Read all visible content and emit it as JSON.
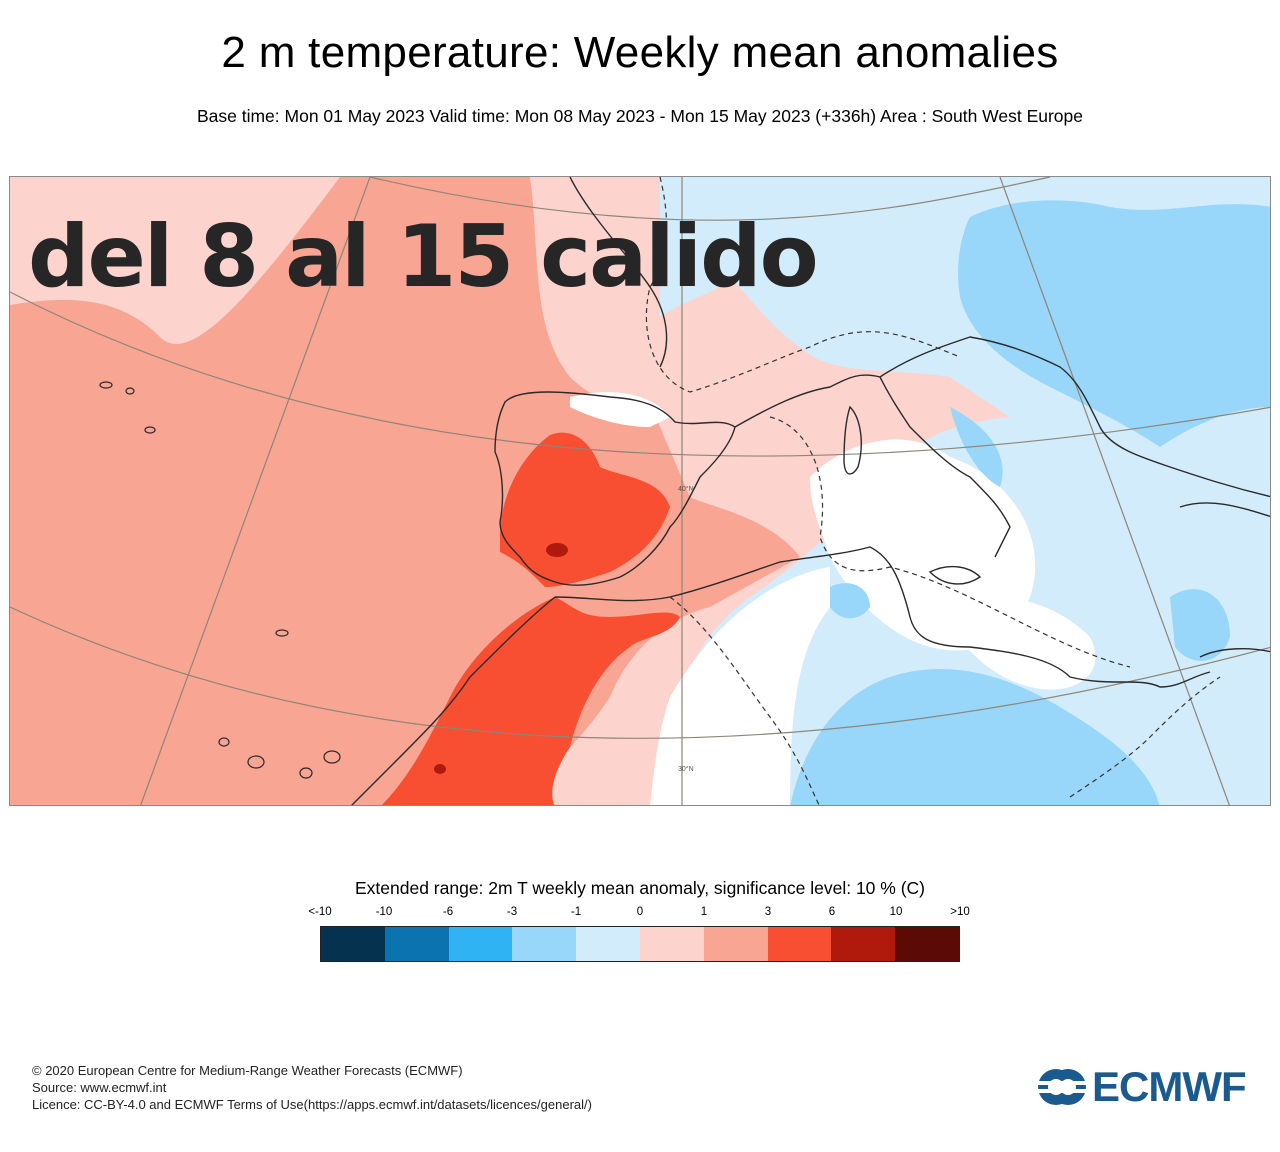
{
  "header": {
    "title": "2 m temperature: Weekly mean anomalies",
    "subtitle": "Base time: Mon 01 May 2023 Valid time: Mon 08 May 2023 - Mon 15 May 2023 (+336h) Area : South West Europe"
  },
  "map": {
    "overlay_text": "del 8 al 15 calido",
    "latitude_labels": [
      "40°N",
      "30°N"
    ]
  },
  "legend": {
    "title": "Extended range: 2m T weekly mean anomaly, significance level: 10 % (C)",
    "ticks": [
      "<-10",
      "-10",
      "-6",
      "-3",
      "-1",
      "0",
      "1",
      "3",
      "6",
      "10",
      ">10"
    ],
    "colors": [
      "#05324f",
      "#0a73b0",
      "#2fb3f2",
      "#98d7f9",
      "#d2ecfb",
      "#fdd3cd",
      "#f9a594",
      "#f84f33",
      "#b01a0c",
      "#5c0a05"
    ]
  },
  "footer": {
    "credits": [
      "© 2020 European Centre for Medium-Range Weather Forecasts (ECMWF)",
      "Source: www.ecmwf.int",
      "Licence: CC-BY-4.0 and ECMWF Terms of Use(https://apps.ecmwf.int/datasets/licences/general/)"
    ],
    "logo_text": "ECMWF"
  }
}
